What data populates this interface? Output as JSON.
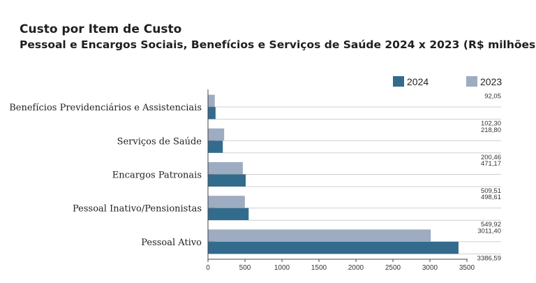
{
  "chart_data": {
    "type": "bar",
    "orientation": "horizontal",
    "title": "Custo por Item de Custo",
    "subtitle": "Pessoal e Encargos Sociais, Benefícios e Serviços de Saúde 2024 x 2023 (R$ milhões)",
    "categories": [
      "Benefícios Previdenciários e Assistenciais",
      "Serviços de Saúde",
      "Encargos Patronais",
      "Pessoal Inativo/Pensionistas",
      "Pessoal Ativo"
    ],
    "series": [
      {
        "name": "2024",
        "color": "#336b8d",
        "values": [
          102.3,
          200.46,
          509.51,
          549.92,
          3386.59
        ],
        "labels": [
          "102,30",
          "200,46",
          "509,51",
          "549,92",
          "3386,59"
        ]
      },
      {
        "name": "2023",
        "color": "#9eacc1",
        "values": [
          92.05,
          218.8,
          471.17,
          498.61,
          3011.4
        ],
        "labels": [
          "92,05",
          "218,80",
          "471,17",
          "498,61",
          "3011,40"
        ]
      }
    ],
    "xlim": [
      0,
      3500
    ],
    "xticks": [
      0,
      500,
      1000,
      1500,
      2000,
      2500,
      3000,
      3500
    ],
    "legend_position": "top-right",
    "grid": false
  }
}
